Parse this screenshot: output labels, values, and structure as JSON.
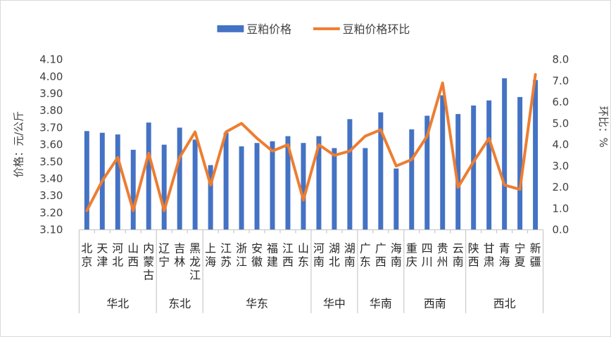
{
  "chart_data": {
    "type": "bar+line",
    "title": "",
    "categories": [
      "北京",
      "天津",
      "河北",
      "山西",
      "内蒙古",
      "辽宁",
      "吉林",
      "黑龙江",
      "上海",
      "江苏",
      "浙江",
      "安徽",
      "福建",
      "江西",
      "山东",
      "河南",
      "湖北",
      "湖南",
      "广东",
      "广西",
      "海南",
      "重庆",
      "四川",
      "贵州",
      "云南",
      "陕西",
      "甘肃",
      "青海",
      "宁夏",
      "新疆"
    ],
    "groups": [
      {
        "name": "华北",
        "count": 5
      },
      {
        "name": "东北",
        "count": 3
      },
      {
        "name": "华东",
        "count": 7
      },
      {
        "name": "华中",
        "count": 3
      },
      {
        "name": "华南",
        "count": 3
      },
      {
        "name": "西南",
        "count": 4
      },
      {
        "name": "西北",
        "count": 5
      }
    ],
    "series": [
      {
        "name": "豆粕价格",
        "type": "bar",
        "axis": "left",
        "color": "#4472C4",
        "values": [
          3.68,
          3.67,
          3.66,
          3.57,
          3.73,
          3.6,
          3.7,
          3.63,
          3.48,
          3.67,
          3.59,
          3.61,
          3.62,
          3.65,
          3.61,
          3.65,
          3.58,
          3.75,
          3.58,
          3.79,
          3.46,
          3.69,
          3.77,
          3.89,
          3.78,
          3.83,
          3.86,
          3.99,
          3.88,
          3.98
        ]
      },
      {
        "name": "豆粕价格环比",
        "type": "line",
        "axis": "right",
        "color": "#ED7D31",
        "values": [
          0.9,
          2.3,
          3.4,
          0.9,
          3.6,
          0.9,
          3.4,
          4.6,
          2.1,
          4.6,
          5.0,
          4.3,
          3.7,
          4.0,
          1.4,
          4.0,
          3.5,
          3.7,
          4.4,
          4.7,
          3.0,
          3.3,
          4.4,
          6.9,
          2.0,
          3.2,
          4.3,
          2.1,
          1.9,
          7.3
        ]
      }
    ],
    "y_left": {
      "label": "价格：元/公斤",
      "range": [
        3.1,
        4.1
      ],
      "ticks": [
        "3.10",
        "3.20",
        "3.30",
        "3.40",
        "3.50",
        "3.60",
        "3.70",
        "3.80",
        "3.90",
        "4.00",
        "4.10"
      ]
    },
    "y_right": {
      "label": "环比：%",
      "range": [
        0.0,
        8.0
      ],
      "ticks": [
        "0.0",
        "1.0",
        "2.0",
        "3.0",
        "4.0",
        "5.0",
        "6.0",
        "7.0",
        "8.0"
      ]
    },
    "grid": false,
    "legend": "top-center"
  }
}
